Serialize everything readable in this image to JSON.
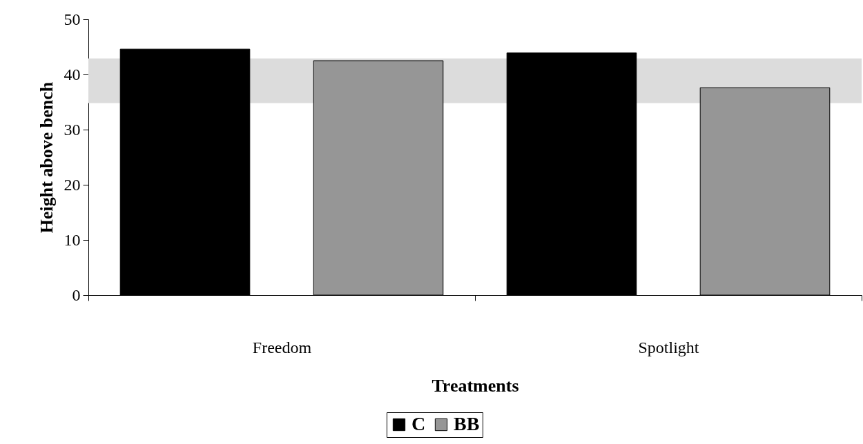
{
  "chart_data": {
    "type": "bar",
    "xlabel": "Treatments",
    "ylabel": "Height above bench",
    "categories": [
      "Freedom",
      "Spotlight"
    ],
    "series": [
      {
        "name": "C",
        "color": "#000000",
        "values": [
          44.6,
          43.9
        ]
      },
      {
        "name": "BB",
        "color": "#969696",
        "values": [
          42.5,
          37.6
        ]
      }
    ],
    "ylim": [
      0,
      50
    ],
    "yticks": [
      0,
      10,
      20,
      30,
      40,
      50
    ],
    "bands": [
      {
        "axis": "y",
        "from": 34.8,
        "to": 42.9,
        "color": "#dcdcdc"
      }
    ],
    "grid": false,
    "legend": "bottom"
  }
}
